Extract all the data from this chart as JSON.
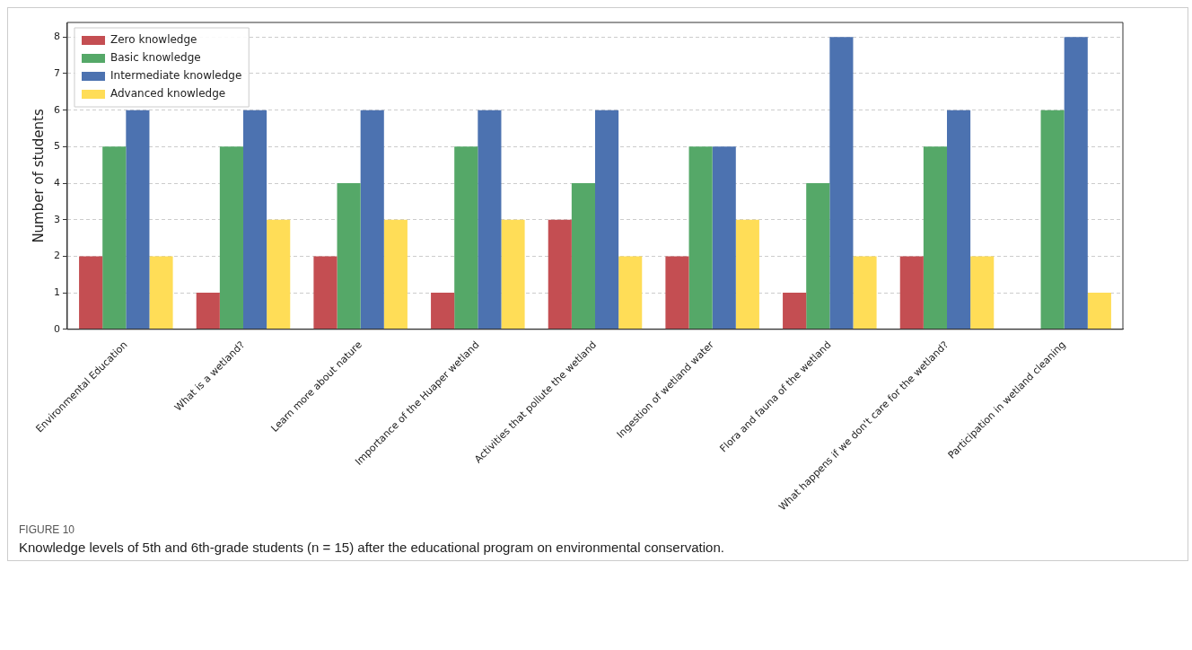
{
  "chart_data": {
    "type": "bar",
    "categories": [
      "Environmental Education",
      "What is a wetland?",
      "Learn more about nature",
      "Importance of the Huaper wetland",
      "Activities that pollute the wetland",
      "Ingestion of wetland water",
      "Flora and fauna of the wetland",
      "What happens if we don't care for the wetland?",
      "Participation in wetland cleaning"
    ],
    "series": [
      {
        "name": "Zero knowledge",
        "color": "#c44e52",
        "values": [
          2,
          1,
          2,
          1,
          3,
          2,
          1,
          2,
          0
        ]
      },
      {
        "name": "Basic knowledge",
        "color": "#55a868",
        "values": [
          5,
          5,
          4,
          5,
          4,
          5,
          4,
          5,
          6
        ]
      },
      {
        "name": "Intermediate knowledge",
        "color": "#4c72b0",
        "values": [
          6,
          6,
          6,
          6,
          6,
          5,
          8,
          6,
          8
        ]
      },
      {
        "name": "Advanced knowledge",
        "color": "#ffdd57",
        "values": [
          2,
          3,
          3,
          3,
          2,
          3,
          2,
          2,
          1
        ]
      }
    ],
    "ylabel": "Number of students",
    "ylim": [
      0,
      8.4
    ],
    "yticks": [
      0,
      1,
      2,
      3,
      4,
      5,
      6,
      7,
      8
    ],
    "grid": "y",
    "legend": "top left",
    "annotations": [
      "FIGURE 10",
      "Knowledge levels of 5th and 6th-grade students (n = 15) after the educational program on environmental conservation."
    ]
  }
}
